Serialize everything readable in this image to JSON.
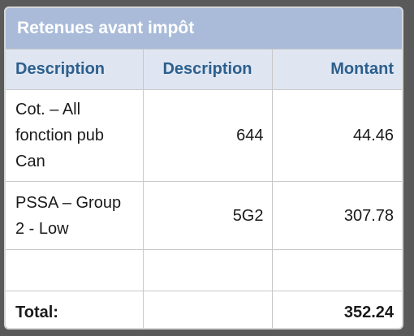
{
  "panel": {
    "title": "Retenues avant impôt",
    "colors": {
      "header_bg": "#a9bbd9",
      "column_header_bg": "#dfe6f2",
      "column_header_text": "#2c5f8d"
    }
  },
  "table": {
    "headers": [
      "Description",
      "Description",
      "Montant"
    ],
    "rows": [
      {
        "description": "Cot. – All fonction pub Can",
        "code": "644",
        "amount": "44.46"
      },
      {
        "description": "PSSA – Group 2 - Low",
        "code": "5G2",
        "amount": "307.78"
      },
      {
        "description": "",
        "code": "",
        "amount": ""
      }
    ],
    "total": {
      "label": "Total:",
      "code": "",
      "amount": "352.24"
    }
  }
}
